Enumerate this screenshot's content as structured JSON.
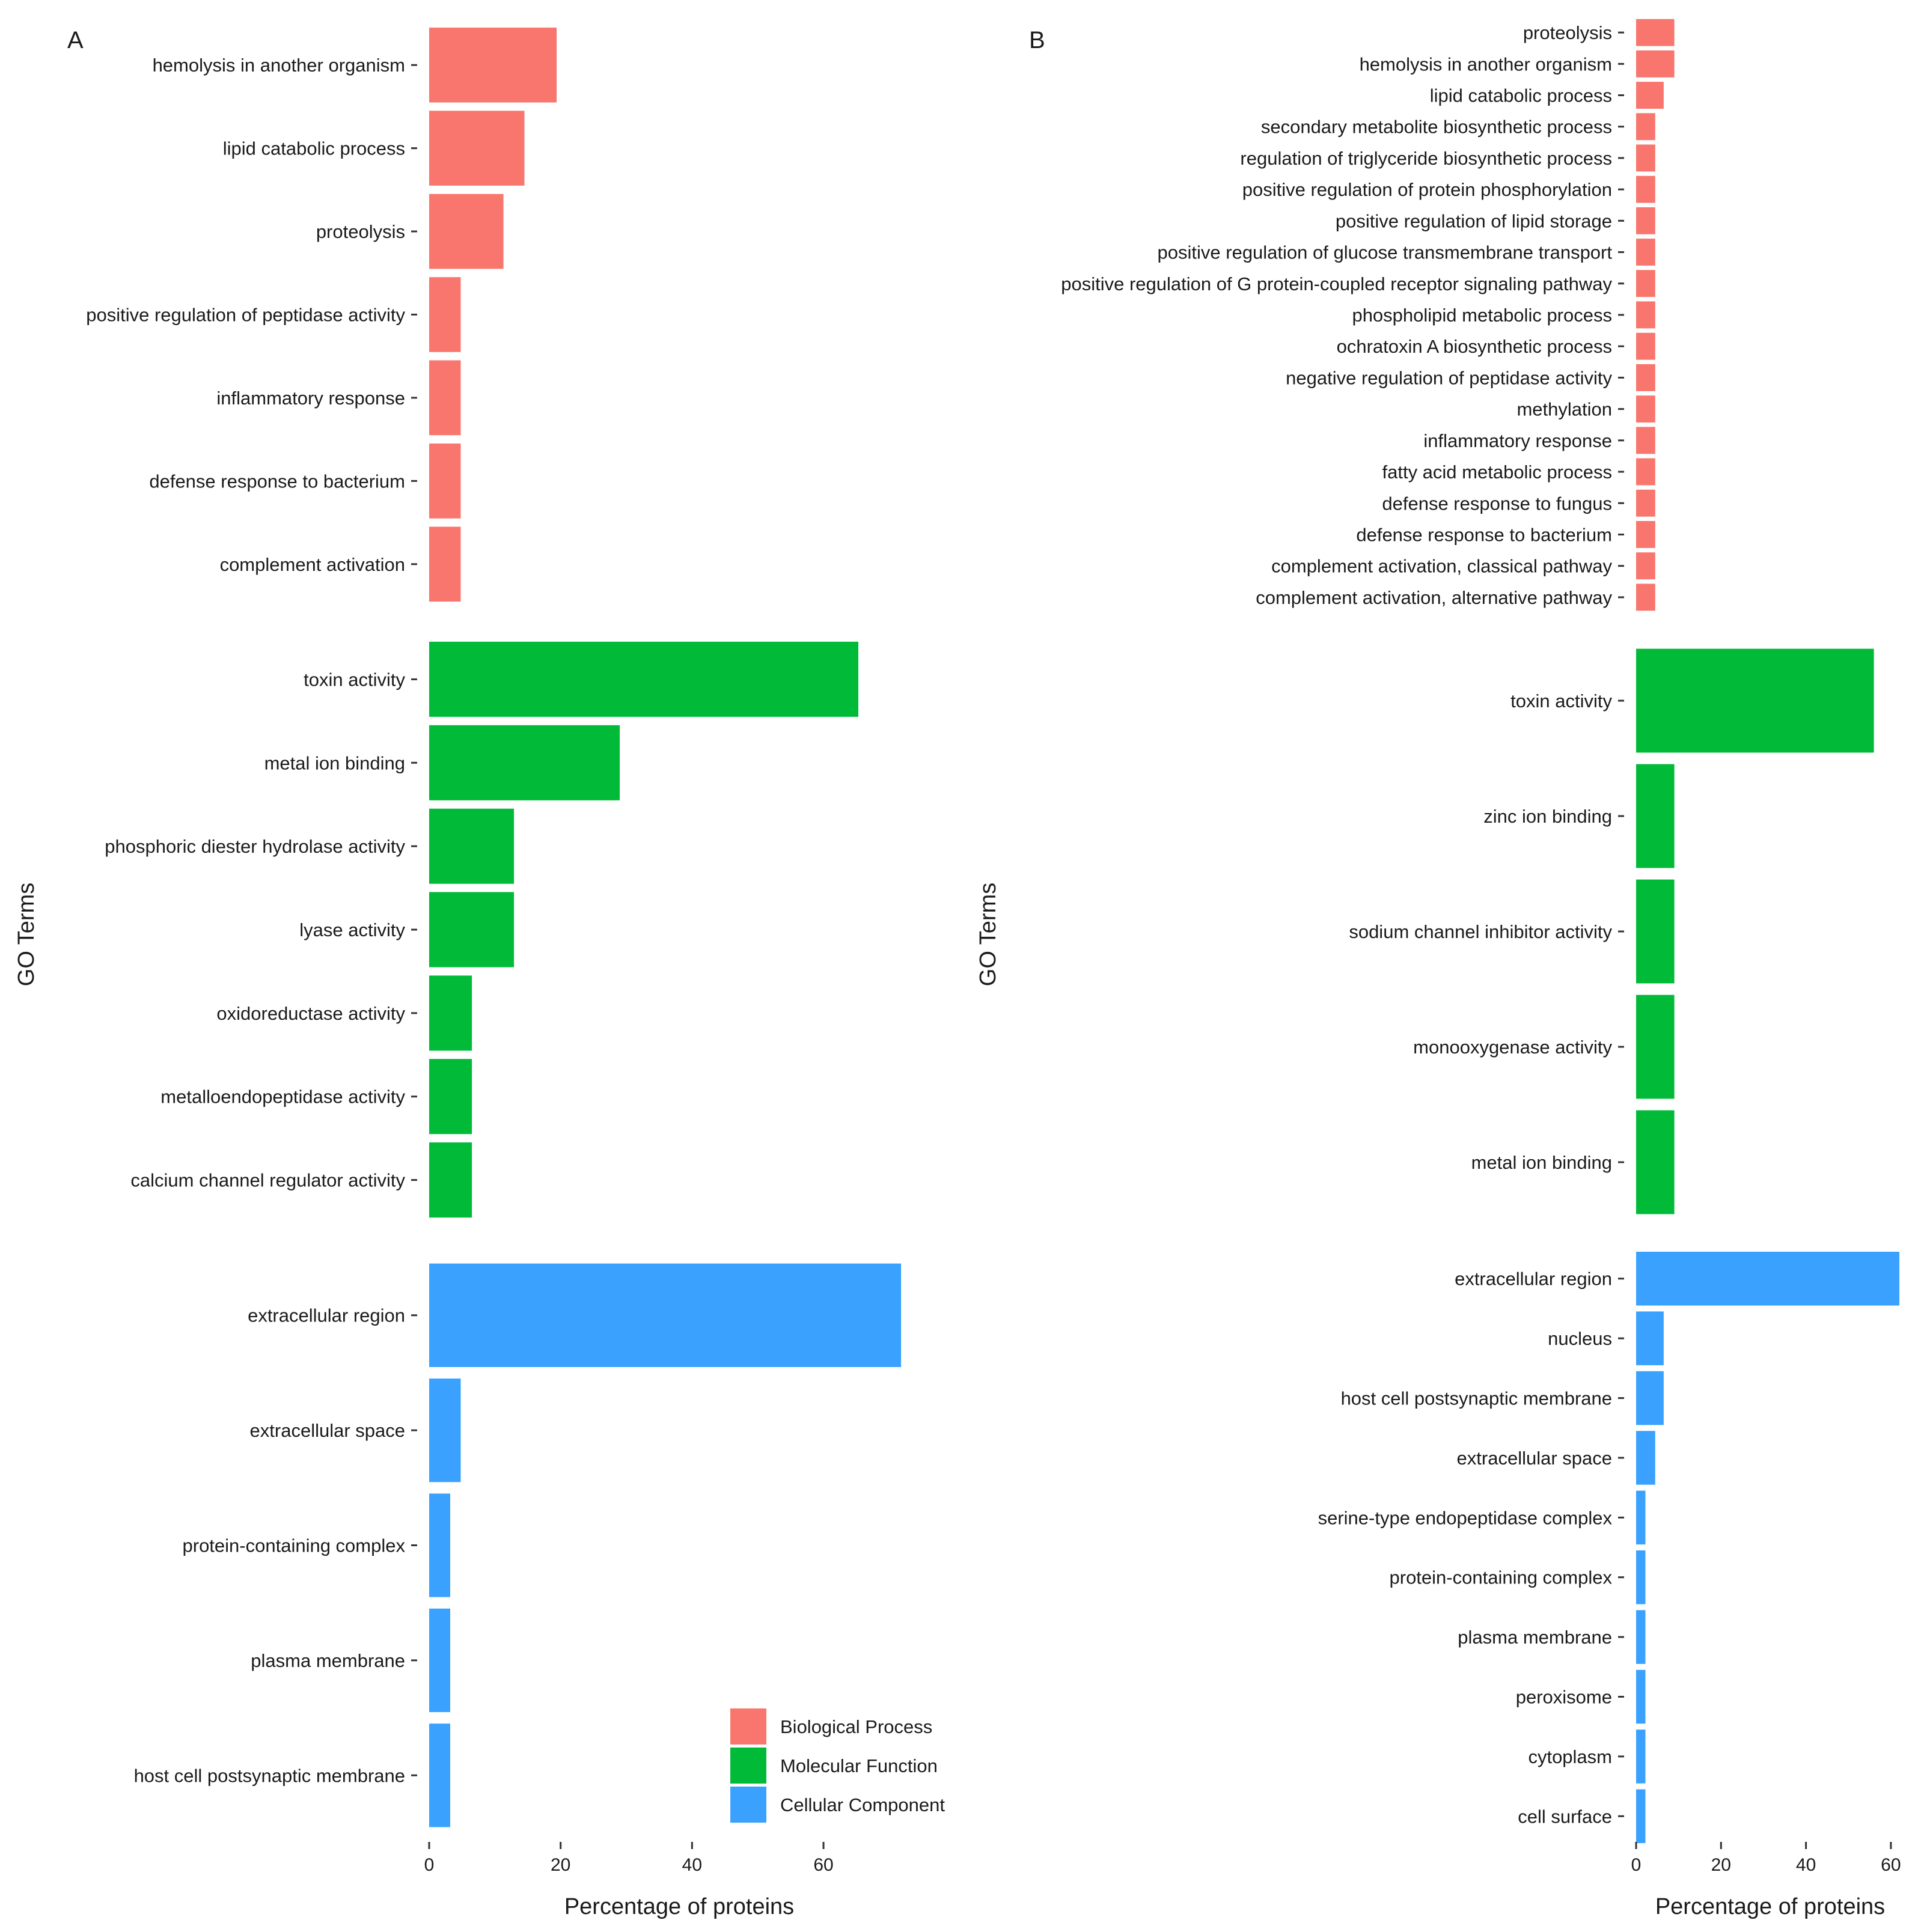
{
  "colors": {
    "Biological Process": "#f8766d",
    "Molecular Function": "#00ba38",
    "Cellular Component": "#3aa1ff"
  },
  "legend": {
    "items": [
      {
        "label": "Biological Process",
        "color": "#f8766d"
      },
      {
        "label": "Molecular Function",
        "color": "#00ba38"
      },
      {
        "label": "Cellular Component",
        "color": "#3aa1ff"
      }
    ]
  },
  "chart_data": [
    {
      "type": "bar",
      "orientation": "horizontal",
      "panel_label": "A",
      "title": "",
      "xlabel": "Percentage of proteins",
      "ylabel": "GO Terms",
      "xlim": [
        0,
        76
      ],
      "xticks": [
        0,
        20,
        40,
        60
      ],
      "legend_position": "bottom-right",
      "groups": [
        {
          "name": "Biological Process",
          "categories": [
            "hemolysis in another organism",
            "lipid catabolic process",
            "proteolysis",
            "positive regulation of peptidase activity",
            "inflammatory response",
            "defense response to bacterium",
            "complement activation"
          ],
          "values": [
            19.4,
            14.5,
            11.3,
            4.8,
            4.8,
            4.8,
            4.8
          ]
        },
        {
          "name": "Molecular Function",
          "categories": [
            "toxin activity",
            "metal ion binding",
            "phosphoric diester hydrolase activity",
            "lyase activity",
            "oxidoreductase activity",
            "metalloendopeptidase activity",
            "calcium channel regulator activity"
          ],
          "values": [
            65.3,
            29,
            12.9,
            12.9,
            6.5,
            6.5,
            6.5
          ]
        },
        {
          "name": "Cellular Component",
          "categories": [
            "extracellular region",
            "extracellular space",
            "protein-containing complex",
            "plasma membrane",
            "host cell postsynaptic membrane"
          ],
          "values": [
            71.8,
            4.8,
            3.2,
            3.2,
            3.2
          ]
        }
      ]
    },
    {
      "type": "bar",
      "orientation": "horizontal",
      "panel_label": "B",
      "title": "",
      "xlabel": "Percentage of proteins",
      "ylabel": "GO Terms",
      "xlim": [
        0,
        62
      ],
      "xticks": [
        0,
        20,
        40,
        60
      ],
      "groups": [
        {
          "name": "Biological Process",
          "categories": [
            "proteolysis",
            "hemolysis in another organism",
            "lipid catabolic process",
            "secondary metabolite biosynthetic process",
            "regulation of triglyceride biosynthetic process",
            "positive regulation of protein phosphorylation",
            "positive regulation of lipid storage",
            "positive regulation of glucose transmembrane transport",
            "positive regulation of G protein-coupled receptor signaling pathway",
            "phospholipid metabolic process",
            "ochratoxin A biosynthetic process",
            "negative regulation of peptidase activity",
            "methylation",
            "inflammatory response",
            "fatty acid metabolic process",
            "defense response to fungus",
            "defense response to bacterium",
            "complement activation, classical pathway",
            "complement activation, alternative pathway"
          ],
          "values": [
            9,
            9,
            6.5,
            4.5,
            4.5,
            4.5,
            4.5,
            4.5,
            4.5,
            4.5,
            4.5,
            4.5,
            4.5,
            4.5,
            4.5,
            4.5,
            4.5,
            4.5,
            4.5
          ]
        },
        {
          "name": "Molecular Function",
          "categories": [
            "toxin activity",
            "zinc ion binding",
            "sodium channel inhibitor activity",
            "monooxygenase activity",
            "metal ion binding"
          ],
          "values": [
            56,
            9,
            9,
            9,
            9
          ]
        },
        {
          "name": "Cellular Component",
          "categories": [
            "extracellular region",
            "nucleus",
            "host cell postsynaptic membrane",
            "extracellular space",
            "serine-type endopeptidase complex",
            "protein-containing complex",
            "plasma membrane",
            "peroxisome",
            "cytoplasm",
            "cell surface"
          ],
          "values": [
            62,
            6.5,
            6.5,
            4.5,
            2.2,
            2.2,
            2.2,
            2.2,
            2.2,
            2.2
          ]
        }
      ]
    }
  ]
}
